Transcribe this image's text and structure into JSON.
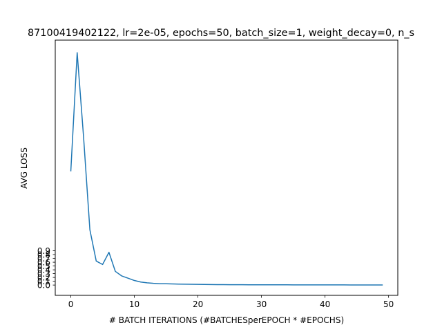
{
  "chart_data": {
    "type": "line",
    "title": "87100419402122, lr=2e-05, epochs=50, batch_size=1, weight_decay=0, n_s",
    "xlabel": "# BATCH ITERATIONS (#BATCHESperEPOCH * #EPOCHS)",
    "ylabel": "AVG LOSS",
    "xlim": [
      -2.45,
      51.45
    ],
    "ylim": [
      -0.27,
      6.43
    ],
    "x_ticks": [
      0,
      10,
      20,
      30,
      40,
      50
    ],
    "x_tick_labels": [
      "0",
      "10",
      "20",
      "30",
      "40",
      "50"
    ],
    "y_ticks": [
      0.0,
      0.1,
      0.2,
      0.3,
      0.4,
      0.5,
      0.6,
      0.7,
      0.8,
      0.9
    ],
    "y_tick_labels": [
      "0.0",
      "0.1",
      "0.2",
      "0.3",
      "0.4",
      "0.5",
      "0.6",
      "0.7",
      "0.8",
      "0.9"
    ],
    "grid": false,
    "series": [
      {
        "color": "#1f77b4",
        "x": [
          0,
          1,
          2,
          3,
          4,
          5,
          6,
          7,
          8,
          9,
          10,
          11,
          12,
          13,
          14,
          15,
          16,
          17,
          18,
          19,
          20,
          21,
          22,
          23,
          24,
          25,
          26,
          27,
          28,
          29,
          30,
          31,
          32,
          33,
          34,
          35,
          36,
          37,
          38,
          39,
          40,
          41,
          42,
          43,
          44,
          45,
          46,
          47,
          48,
          49
        ],
        "y": [
          3.0,
          6.1,
          3.9,
          1.45,
          0.63,
          0.54,
          0.86,
          0.36,
          0.24,
          0.18,
          0.12,
          0.08,
          0.06,
          0.045,
          0.035,
          0.035,
          0.03,
          0.025,
          0.022,
          0.02,
          0.018,
          0.016,
          0.014,
          0.012,
          0.011,
          0.01,
          0.009,
          0.009,
          0.008,
          0.008,
          0.007,
          0.007,
          0.006,
          0.006,
          0.006,
          0.005,
          0.005,
          0.005,
          0.005,
          0.004,
          0.004,
          0.004,
          0.004,
          0.004,
          0.003,
          0.003,
          0.003,
          0.003,
          0.003,
          0.003
        ]
      }
    ]
  }
}
